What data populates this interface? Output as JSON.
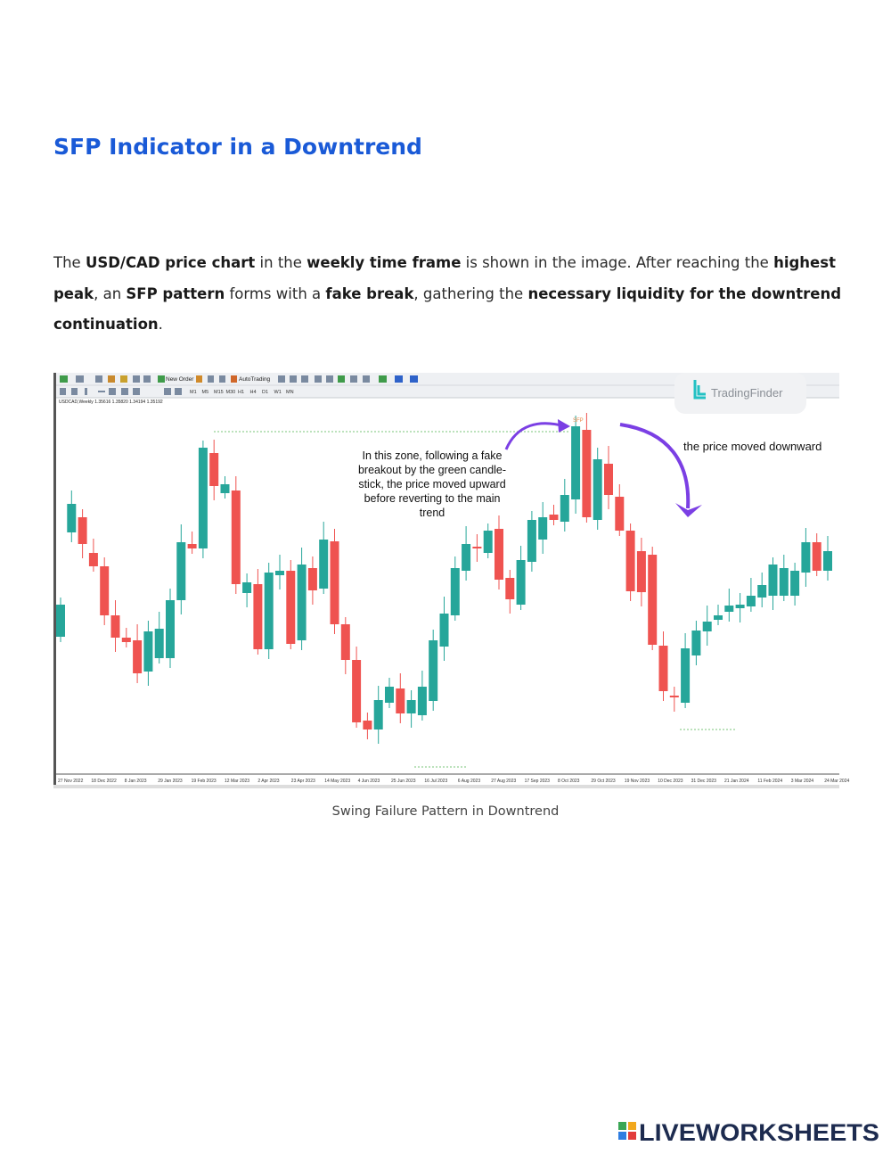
{
  "title": "SFP Indicator in a Downtrend",
  "paragraph": [
    {
      "text": "The ",
      "bold": false
    },
    {
      "text": "USD/CAD price chart",
      "bold": true
    },
    {
      "text": " in the ",
      "bold": false
    },
    {
      "text": "weekly time frame",
      "bold": true
    },
    {
      "text": " is shown in the image. After reaching the ",
      "bold": false
    },
    {
      "text": "highest peak",
      "bold": true
    },
    {
      "text": ", an ",
      "bold": false
    },
    {
      "text": "SFP pattern",
      "bold": true
    },
    {
      "text": " forms with a ",
      "bold": false
    },
    {
      "text": "fake break",
      "bold": true
    },
    {
      "text": ", gathering the ",
      "bold": false
    },
    {
      "text": "necessary liquidity for the downtrend continuation",
      "bold": true
    },
    {
      "text": ".",
      "bold": false
    }
  ],
  "screenshot": {
    "toolbar": {
      "new_order": "New Order",
      "auto_trading": "AutoTrading",
      "timeframes": [
        "M1",
        "M5",
        "M15",
        "M30",
        "H1",
        "H4",
        "D1",
        "W1",
        "MN"
      ]
    },
    "symbol_line": "USDCAD,Weekly  1.35616 1.35820 1.34194 1.35192",
    "brand": "TradingFinder",
    "sfp_label": "SFP",
    "annotation_left": [
      "In this zone, following a fake",
      "breakout by the green candle-",
      "stick, the price moved upward",
      "before reverting to the main",
      "trend"
    ],
    "annotation_right": "the price moved downward",
    "dates": [
      "27 Nov 2022",
      "18 Dec 2022",
      "8 Jan 2023",
      "29 Jan 2023",
      "19 Feb 2023",
      "12 Mar 2023",
      "2 Apr 2023",
      "23 Apr 2023",
      "14 May 2023",
      "4 Jun 2023",
      "25 Jun 2023",
      "16 Jul 2023",
      "6 Aug 2023",
      "27 Aug 2023",
      "17 Sep 2023",
      "8 Oct 2023",
      "29 Oct 2023",
      "19 Nov 2023",
      "10 Dec 2023",
      "31 Dec 2023",
      "21 Jan 2024",
      "11 Feb 2024",
      "3 Mar 2024",
      "24 Mar 2024"
    ]
  },
  "caption": "Swing Failure Pattern in Downtrend",
  "logo": "LIVEWORKSHEETS"
}
